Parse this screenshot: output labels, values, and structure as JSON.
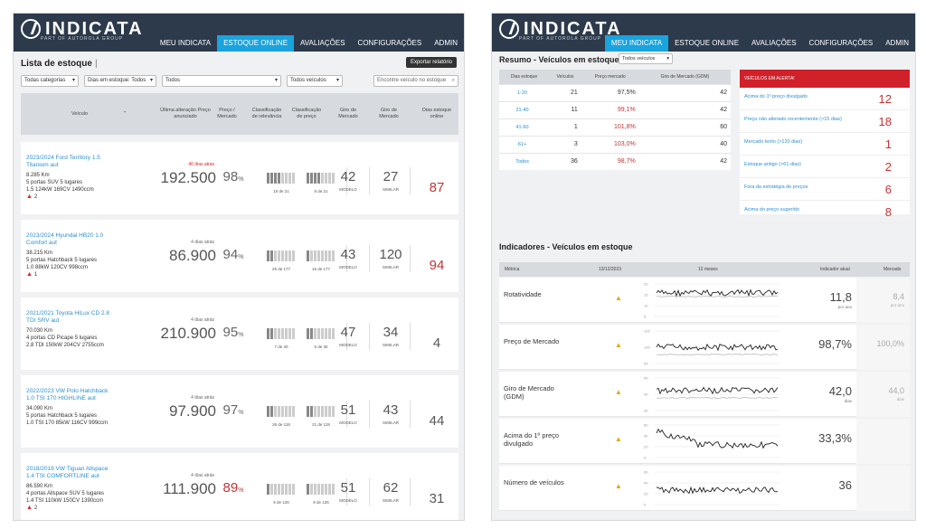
{
  "brand": {
    "name": "INDICATA",
    "tagline": "PART OF AUTOROLA GROUP"
  },
  "left": {
    "nav": [
      "MEU INDICATA",
      "ESTOQUE ONLINE",
      "AVALIAÇÕES",
      "CONFIGURAÇÕES",
      "ADMIN"
    ],
    "active_nav": "ESTOQUE ONLINE",
    "title": "Lista de estoque",
    "export_label": "Exportar relatório",
    "filters": {
      "categories": "Todas categorias",
      "days": "Dias em estoque: Todos",
      "all": "Todos",
      "vehicles": "Todos veículos",
      "search_placeholder": "Encontre veículo no estoque"
    },
    "columns": {
      "vehicle": "Veículo",
      "last_change": "Última alteração Preço anunciado",
      "price_market": "Preço / Mercado",
      "class_rel": "Classificação de relevância",
      "class_price": "Classificação de preço",
      "giro_mercado": "Giro de Mercado",
      "giro_mercado2": "Giro de Mercado",
      "days_online": "Dias estoque online"
    },
    "model_label": "MODELO",
    "similar_label": "SIMILAR",
    "vehicles": [
      {
        "name": "2023/2024 Ford Territory 1.5 Titanium aut",
        "km": "8.285 Km",
        "desc": "5 portas SUV 5 lugares",
        "engine": "1.5 124kW 169CV 1490ccm",
        "alerts": "2",
        "when": "40 dias atrás",
        "price": "192.500",
        "pct": "98",
        "rel": "10 de 21",
        "rel_fill": 0.5,
        "cls": "8 de 21",
        "cls_fill": 0.4,
        "giro": "42",
        "similar": "27",
        "days": "87",
        "when_red": true,
        "pct_red": false,
        "days_red": true
      },
      {
        "name": "2023/2024 Hyundai HB20 1.0 Comfort aut",
        "km": "38.215 Km",
        "desc": "5 portas Hatchback 5 lugares",
        "engine": "1.0 88kW 120CV 998ccm",
        "alerts": "1",
        "when": "4 dias atrás",
        "price": "86.900",
        "pct": "94",
        "rel": "29 de 177",
        "rel_fill": 0.15,
        "cls": "16 de 177",
        "cls_fill": 0.1,
        "giro": "43",
        "similar": "120",
        "days": "94",
        "when_red": false,
        "pct_red": false,
        "days_red": true
      },
      {
        "name": "2021/2021 Toyota HiLux CD 2.8 TDI SRV aut",
        "km": "70.030 Km",
        "desc": "4 portas CD Picape 5 lugares",
        "engine": "2.8 TDI 150kW 204CV 2755ccm",
        "alerts": "",
        "when": "4 dias atrás",
        "price": "210.900",
        "pct": "95",
        "rel": "7 de 30",
        "rel_fill": 0.25,
        "cls": "6 de 30",
        "cls_fill": 0.2,
        "giro": "47",
        "similar": "34",
        "days": "4",
        "when_red": false,
        "pct_red": false,
        "days_red": false
      },
      {
        "name": "2022/2023 VW Polo Hatchback 1.0 TSI 170 HIGHLINE aut",
        "km": "34.090 Km",
        "desc": "5 portas Hatchback 5 lugares",
        "engine": "1.0 TSI 170 85kW 116CV 999ccm",
        "alerts": "",
        "when": "4 dias atrás",
        "price": "97.900",
        "pct": "97",
        "rel": "26 de 118",
        "rel_fill": 0.22,
        "cls": "21 de 119",
        "cls_fill": 0.18,
        "giro": "51",
        "similar": "43",
        "days": "44",
        "when_red": false,
        "pct_red": false,
        "days_red": false
      },
      {
        "name": "2018/2019 VW Tiguan Allspace 1.4 TSI COMFORTLINE aut",
        "km": "86.590 Km",
        "desc": "4 portas Allspace SUV 5 lugares",
        "engine": "1.4 TSI 110kW 150CV 1390ccm",
        "alerts": "2",
        "when": "4 dias atrás",
        "price": "111.900",
        "pct": "89",
        "rel": "9 de 126",
        "rel_fill": 0.07,
        "cls": "9 de 126",
        "cls_fill": 0.07,
        "giro": "51",
        "similar": "62",
        "days": "31",
        "when_red": false,
        "pct_red": true,
        "days_red": false
      }
    ]
  },
  "right": {
    "nav": [
      "MEU INDICATA",
      "ESTOQUE ONLINE",
      "AVALIAÇÕES",
      "CONFIGURAÇÕES",
      "ADMIN"
    ],
    "active_nav": "MEU INDICATA",
    "summary_title": "Resumo - Veículos em estoque",
    "summary_select": "Todos veículos",
    "summary_cols": [
      "Dias estoque",
      "Veículos",
      "Preço mercado",
      "Giro de Mercado (GDM)"
    ],
    "summary_rows": [
      {
        "range": "1-20",
        "vehicles": "21",
        "price": "97,5%",
        "gdm": "42",
        "red": false
      },
      {
        "range": "21-40",
        "vehicles": "11",
        "price": "99,1%",
        "gdm": "42",
        "red": true
      },
      {
        "range": "41-60",
        "vehicles": "1",
        "price": "101,8%",
        "gdm": "60",
        "red": true
      },
      {
        "range": "61+",
        "vehicles": "3",
        "price": "103,0%",
        "gdm": "40",
        "red": true
      },
      {
        "range": "Todos",
        "vehicles": "36",
        "price": "98,7%",
        "gdm": "42",
        "red": true
      }
    ],
    "alerts_title": "VEÍCULOS EM ALERTA!",
    "alerts": [
      {
        "label": "Acima do 1º preço divulgado",
        "value": "12"
      },
      {
        "label": "Preço não alterado recentemente (>15 dias)",
        "value": "18"
      },
      {
        "label": "Mercado lento (>120 dias)",
        "value": "1"
      },
      {
        "label": "Estoque antigo (>61 dias)",
        "value": "2"
      },
      {
        "label": "Fora da estratégia de preços",
        "value": "6"
      },
      {
        "label": "Acima do preço sugerido",
        "value": "8"
      }
    ],
    "indicators_title": "Indicadores - Veículos em estoque",
    "ind_cols": {
      "metric": "Métrica",
      "date": "13/12/2023",
      "months": "12 meses",
      "current": "Indicador atual",
      "market": "Mercado"
    },
    "indicators": [
      {
        "name": "Rotatividade",
        "value": "11,8",
        "unit": "por ano",
        "market": "8,4",
        "market_unit": "por ano",
        "ticks": [
          "20",
          "15",
          "10",
          "5"
        ]
      },
      {
        "name": "Preço de Mercado",
        "value": "98,7%",
        "unit": "",
        "market": "100,0%",
        "market_unit": "",
        "ticks": [
          "105",
          "100",
          "95"
        ]
      },
      {
        "name": "Giro de Mercado (GDM)",
        "value": "42,0",
        "unit": "dias",
        "market": "44,0",
        "market_unit": "dias",
        "ticks": [
          "50",
          "40",
          "30"
        ]
      },
      {
        "name": "Acima do 1º preço divulgado",
        "value": "33,3%",
        "unit": "",
        "market": "",
        "market_unit": "",
        "ticks": [
          "60",
          "40",
          "20",
          "0"
        ]
      },
      {
        "name": "Número de veículos",
        "value": "36",
        "unit": "",
        "market": "",
        "market_unit": "",
        "ticks": [
          "60",
          "40",
          "20",
          "0"
        ]
      }
    ]
  }
}
